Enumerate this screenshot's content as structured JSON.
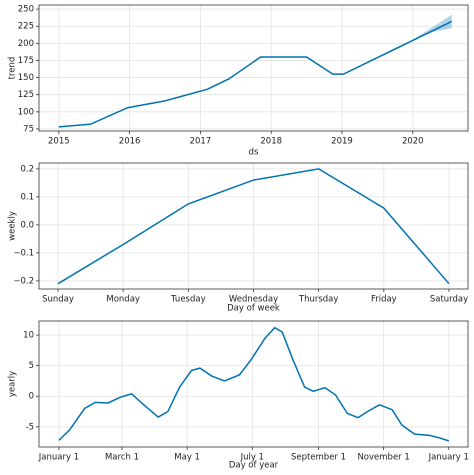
{
  "chart_data": [
    {
      "type": "line",
      "xlabel": "ds",
      "ylabel": "trend",
      "color": "#0072B2",
      "grid": true,
      "x": [
        2015.0,
        2015.45,
        2015.97,
        2016.5,
        2017.1,
        2017.4,
        2017.85,
        2018.5,
        2018.87,
        2019.02,
        2020.55
      ],
      "values": [
        78,
        82,
        106,
        116,
        133,
        148,
        180,
        180,
        155,
        155,
        232
      ],
      "band": {
        "x": [
          2020.0,
          2020.3,
          2020.55
        ],
        "lower": [
          205,
          217,
          222
        ],
        "upper": [
          205,
          225,
          242
        ]
      },
      "xlim": [
        2014.72,
        2020.78
      ],
      "ylim": [
        72,
        256
      ],
      "xticks": [
        2015,
        2016,
        2017,
        2018,
        2019,
        2020
      ],
      "yticks": [
        75,
        100,
        125,
        150,
        175,
        200,
        225,
        250
      ]
    },
    {
      "type": "line",
      "xlabel": "Day of week",
      "ylabel": "weekly",
      "color": "#0072B2",
      "grid": true,
      "categories": [
        "Sunday",
        "Monday",
        "Tuesday",
        "Wednesday",
        "Thursday",
        "Friday",
        "Saturday"
      ],
      "values": [
        -0.21,
        -0.07,
        0.075,
        0.16,
        0.2,
        0.06,
        -0.21
      ],
      "ylim": [
        -0.229,
        0.221
      ],
      "yticks": [
        {
          "value": -0.2,
          "label": "−0.2"
        },
        {
          "value": -0.1,
          "label": "−0.1"
        },
        {
          "value": 0,
          "label": "0.0"
        },
        0.1,
        0.2
      ]
    },
    {
      "type": "line",
      "xlabel": "Day of year",
      "ylabel": "yearly",
      "color": "#0072B2",
      "grid": true,
      "x": [
        0,
        10,
        24,
        34,
        46,
        57,
        68,
        80,
        93,
        102,
        113,
        124,
        132,
        143,
        155,
        169,
        180,
        193,
        202,
        209,
        219,
        230,
        238,
        249,
        259,
        270,
        280,
        289,
        300,
        312,
        321,
        333,
        347,
        356,
        365
      ],
      "values": [
        -7.2,
        -5.5,
        -2,
        -1,
        -1.1,
        -0.2,
        0.4,
        -1.5,
        -3.4,
        -2.5,
        1.5,
        4.2,
        4.6,
        3.3,
        2.5,
        3.5,
        6,
        9.5,
        11.2,
        10.5,
        6,
        1.5,
        0.8,
        1.4,
        0.2,
        -2.8,
        -3.5,
        -2.5,
        -1.4,
        -2.2,
        -4.7,
        -6.2,
        -6.4,
        -6.8,
        -7.3
      ],
      "xlim": [
        -18.7,
        383
      ],
      "ylim": [
        -8.3,
        12.3
      ],
      "xticks": [
        {
          "value": 0,
          "label": "January 1"
        },
        {
          "value": 59,
          "label": "March 1"
        },
        {
          "value": 120,
          "label": "May 1"
        },
        {
          "value": 181,
          "label": "July 1"
        },
        {
          "value": 243,
          "label": "September 1"
        },
        {
          "value": 304,
          "label": "November 1"
        },
        {
          "value": 365,
          "label": "January 1"
        }
      ],
      "yticks": [
        -5,
        0,
        5,
        10
      ]
    }
  ]
}
